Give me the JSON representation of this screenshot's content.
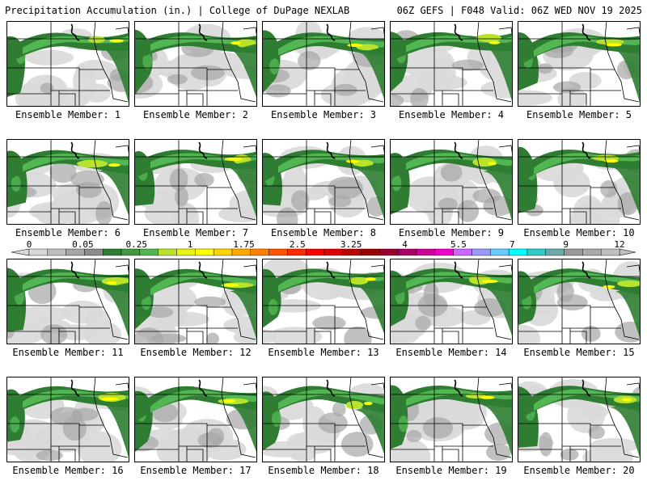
{
  "header": {
    "left": "Precipitation Accumulation (in.) | College of DuPage NEXLAB",
    "right": "06Z GEFS | F048 Valid: 06Z WED NOV 19 2025"
  },
  "member_prefix": "Ensemble Member: ",
  "members": [
    "1",
    "2",
    "3",
    "4",
    "5",
    "6",
    "7",
    "8",
    "9",
    "10",
    "11",
    "12",
    "13",
    "14",
    "15",
    "16",
    "17",
    "18",
    "19",
    "20"
  ],
  "colorbar": {
    "labels": [
      "0",
      "0.05",
      "0.25",
      "1",
      "1.75",
      "2.5",
      "3.25",
      "4",
      "5.5",
      "7",
      "9",
      "12"
    ],
    "colors": [
      "#d9d9d9",
      "#bfbfbf",
      "#a6a6a6",
      "#8c8c8c",
      "#2e7d32",
      "#3f9a3f",
      "#52b752",
      "#b8e32a",
      "#e8f514",
      "#ffff00",
      "#ffd400",
      "#ffaa00",
      "#ff8000",
      "#ff5500",
      "#ff2a00",
      "#ff0000",
      "#dd0000",
      "#bb0000",
      "#990000",
      "#990033",
      "#aa0066",
      "#cc0099",
      "#ee00cc",
      "#cc66ff",
      "#9999ff",
      "#66ccff",
      "#00ffff",
      "#33cccc",
      "#66aaaa",
      "#999999",
      "#aaaaaa",
      "#c0c0c0"
    ]
  },
  "legend_colors": {
    "trace": "#d9d9d9",
    "light": "#a6a6a6",
    "green": "#2e7d32",
    "green_light": "#52b752",
    "yellow_green": "#b8e32a",
    "yellow": "#ffff00"
  }
}
